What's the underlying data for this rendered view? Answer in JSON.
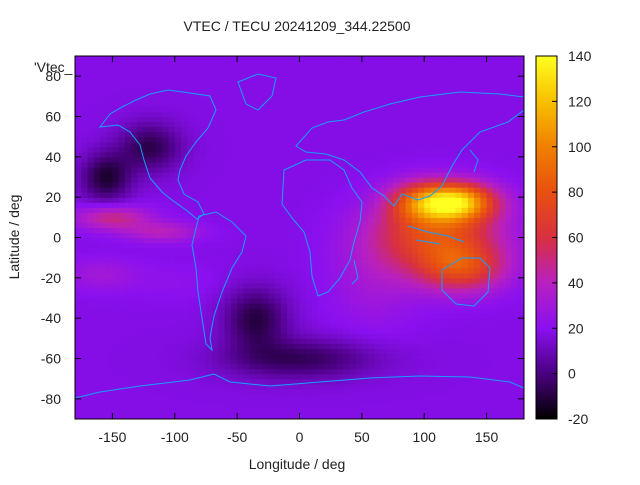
{
  "chart_data": {
    "type": "heatmap",
    "title": "VTEC / TECU 20241209_344.22500",
    "xlabel": "Longitude / deg",
    "ylabel": "Latitude / deg",
    "key_label": "'Vtec_",
    "xlim": [
      -180,
      180
    ],
    "ylim": [
      -90,
      90
    ],
    "xticks": [
      -150,
      -100,
      -50,
      0,
      50,
      100,
      150
    ],
    "yticks": [
      -80,
      -60,
      -40,
      -20,
      0,
      20,
      40,
      60,
      80
    ],
    "colorbar": {
      "min": -20,
      "max": 140,
      "ticks": [
        -20,
        0,
        20,
        40,
        60,
        80,
        100,
        120,
        140
      ]
    },
    "grid": false,
    "field": {
      "background_tecu": 18,
      "features": [
        {
          "lon": 125,
          "lat": 18,
          "peak_tecu": 115,
          "lon_spread": 30,
          "lat_spread": 9
        },
        {
          "lon": 110,
          "lat": 2,
          "peak_tecu": 75,
          "lon_spread": 50,
          "lat_spread": 18
        },
        {
          "lon": 130,
          "lat": -15,
          "peak_tecu": 65,
          "lon_spread": 35,
          "lat_spread": 12
        },
        {
          "lon": 95,
          "lat": 18,
          "peak_tecu": 55,
          "lon_spread": 25,
          "lat_spread": 10
        },
        {
          "lon": -150,
          "lat": 10,
          "peak_tecu": 50,
          "lon_spread": 30,
          "lat_spread": 6
        },
        {
          "lon": -110,
          "lat": 3,
          "peak_tecu": 40,
          "lon_spread": 30,
          "lat_spread": 5
        },
        {
          "lon": -160,
          "lat": -18,
          "peak_tecu": 30,
          "lon_spread": 30,
          "lat_spread": 8
        },
        {
          "lon": -100,
          "lat": -22,
          "peak_tecu": 22,
          "lon_spread": 40,
          "lat_spread": 10
        },
        {
          "lon": 60,
          "lat": -20,
          "peak_tecu": 30,
          "lon_spread": 35,
          "lat_spread": 25
        },
        {
          "lon": -155,
          "lat": 30,
          "peak_tecu": -12,
          "lon_spread": 20,
          "lat_spread": 12
        },
        {
          "lon": -35,
          "lat": -40,
          "peak_tecu": -10,
          "lon_spread": 25,
          "lat_spread": 15
        },
        {
          "lon": -120,
          "lat": 45,
          "peak_tecu": -8,
          "lon_spread": 25,
          "lat_spread": 12
        },
        {
          "lon": 0,
          "lat": -60,
          "peak_tecu": -6,
          "lon_spread": 60,
          "lat_spread": 10
        }
      ]
    }
  }
}
